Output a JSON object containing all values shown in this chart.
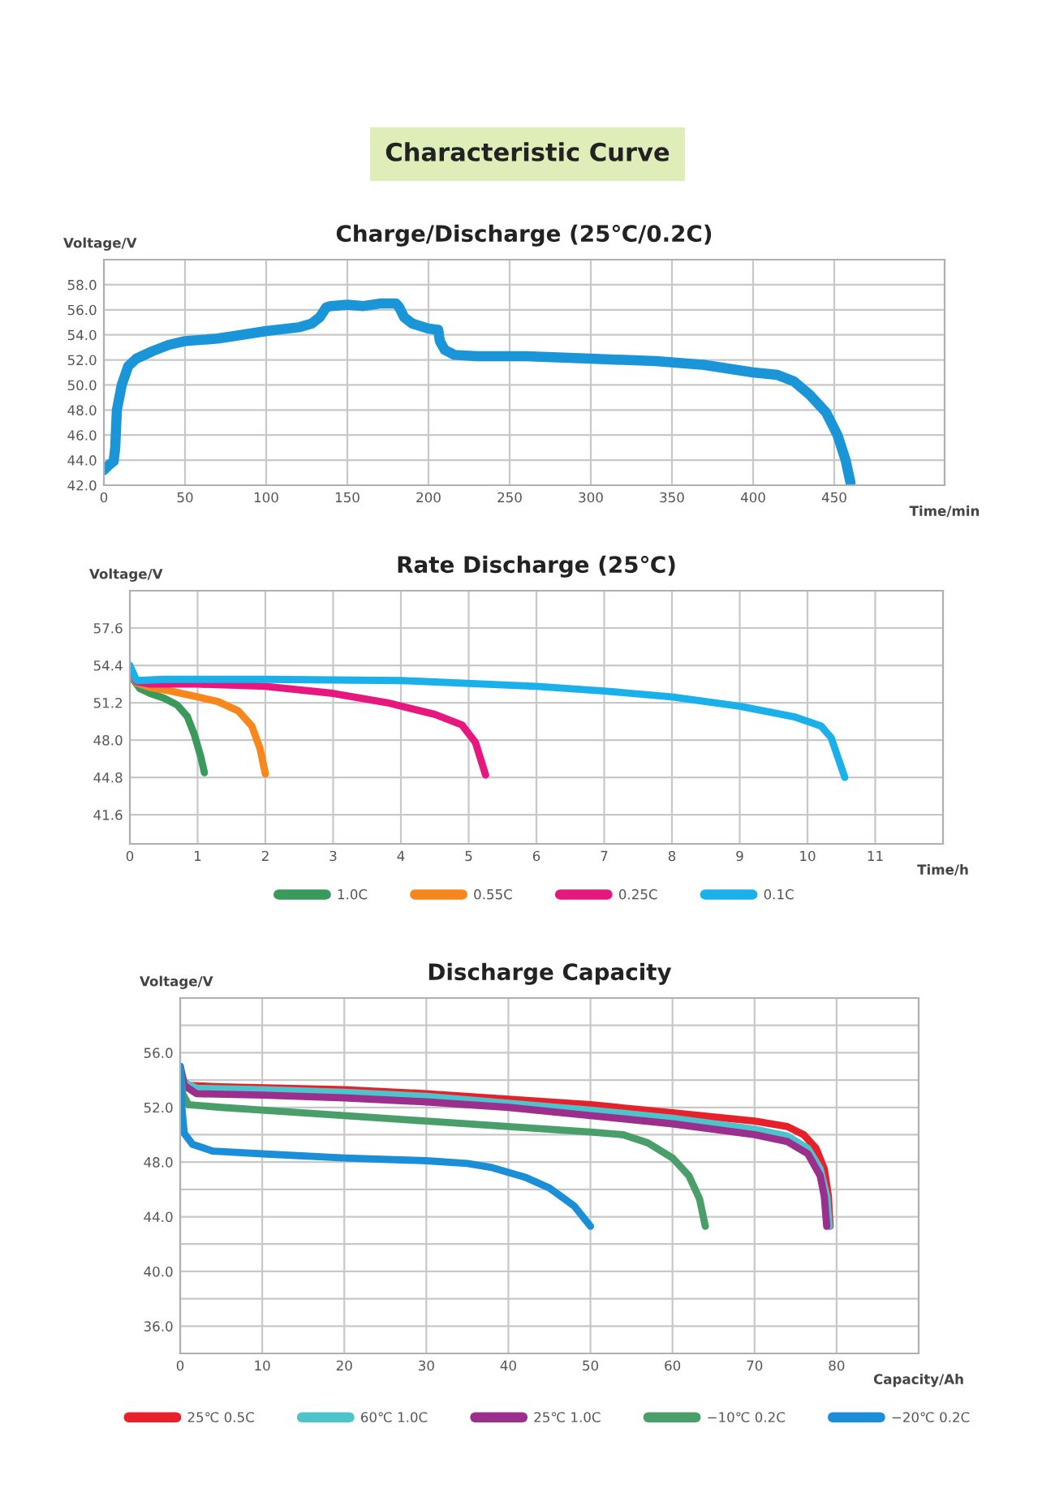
{
  "chart_data": [
    {
      "type": "line",
      "title": "Charge/Discharge (25℃/0.2C)",
      "annotations": [
        "Characteristic Curve"
      ],
      "xlabel": "Time/min",
      "ylabel": "Voltage/V",
      "xlim": [
        0,
        518
      ],
      "xticks": [
        0,
        50,
        100,
        150,
        200,
        250,
        300,
        350,
        400,
        450
      ],
      "ylim": [
        42,
        60
      ],
      "yticks": [
        {
          "value": 42,
          "label": "42.0"
        },
        {
          "value": 44,
          "label": "44.0"
        },
        {
          "value": 46,
          "label": "46.0"
        },
        {
          "value": 48,
          "label": "48.0"
        },
        {
          "value": 50,
          "label": "50.0"
        },
        {
          "value": 52,
          "label": "52.0"
        },
        {
          "value": 54,
          "label": "54.0"
        },
        {
          "value": 56,
          "label": "56.0"
        },
        {
          "value": 58,
          "label": "58.0"
        }
      ],
      "grid": true,
      "legend": false,
      "series": [
        {
          "color": "#1a96d8",
          "x": [
            0,
            3,
            6,
            7,
            8,
            11,
            15,
            20,
            30,
            40,
            50,
            70,
            80,
            100,
            120,
            128,
            133,
            137,
            140,
            150,
            160,
            170,
            180,
            182,
            185,
            190,
            200,
            206,
            207,
            210,
            216,
            230,
            260,
            280,
            300,
            340,
            370,
            400,
            415,
            425,
            435,
            445,
            452,
            457,
            460
          ],
          "values": [
            43.2,
            43.6,
            43.9,
            45,
            48,
            50,
            51.5,
            52.1,
            52.7,
            53.2,
            53.5,
            53.7,
            53.9,
            54.3,
            54.6,
            54.9,
            55.4,
            56.2,
            56.3,
            56.4,
            56.3,
            56.5,
            56.5,
            56.2,
            55.4,
            54.9,
            54.5,
            54.4,
            53.5,
            52.8,
            52.4,
            52.3,
            52.3,
            52.2,
            52.1,
            51.9,
            51.6,
            51.0,
            50.8,
            50.3,
            49.2,
            47.8,
            46,
            44,
            42.2
          ]
        }
      ]
    },
    {
      "type": "line",
      "title": "Rate Discharge (25℃)",
      "xlabel": "Time/h",
      "ylabel": "Voltage/V",
      "xlim": [
        0,
        12
      ],
      "xticks": [
        0,
        1,
        2,
        3,
        4,
        5,
        6,
        7,
        8,
        9,
        10,
        11
      ],
      "ylim": [
        39.1,
        60.8
      ],
      "yticks": [
        41.6,
        44.8,
        {
          "value": 48,
          "label": "48.0"
        },
        51.2,
        54.4,
        57.6
      ],
      "grid": true,
      "legend": "bottom",
      "series": [
        {
          "name": "1.0C",
          "color": "#3a9a5c",
          "x": [
            0,
            0.05,
            0.15,
            0.3,
            0.5,
            0.7,
            0.85,
            0.95,
            1.05,
            1.1
          ],
          "values": [
            54.2,
            53.2,
            52.4,
            52.0,
            51.6,
            51.0,
            50.0,
            48.5,
            46.5,
            45.2
          ]
        },
        {
          "name": "0.55C",
          "color": "#f7861c",
          "x": [
            0,
            0.1,
            0.3,
            0.6,
            1.0,
            1.3,
            1.6,
            1.8,
            1.92,
            2.0
          ],
          "values": [
            54.0,
            52.9,
            52.5,
            52.2,
            51.7,
            51.3,
            50.5,
            49.2,
            47.3,
            45.1
          ]
        },
        {
          "name": "0.25C",
          "color": "#e6177f",
          "x": [
            0,
            0.1,
            0.3,
            1,
            2,
            3,
            3.8,
            4.5,
            4.9,
            5.1,
            5.25
          ],
          "values": [
            54.3,
            53.0,
            52.8,
            52.8,
            52.6,
            52.0,
            51.2,
            50.2,
            49.3,
            47.8,
            45.0
          ]
        },
        {
          "name": "0.1C",
          "color": "#1ab0ea",
          "x": [
            0,
            0.1,
            0.5,
            2,
            4,
            6,
            7,
            8,
            9,
            9.8,
            10.2,
            10.35,
            10.45,
            10.55
          ],
          "values": [
            54.4,
            53.1,
            53.2,
            53.2,
            53.1,
            52.6,
            52.2,
            51.7,
            50.9,
            50.0,
            49.2,
            48.2,
            46.5,
            44.8
          ]
        }
      ]
    },
    {
      "type": "line",
      "title": "Discharge Capacity",
      "xlabel": "Capacity/Ah",
      "ylabel": "Voltage/V",
      "xlim": [
        0,
        90
      ],
      "xticks": [
        0,
        10,
        20,
        30,
        40,
        50,
        60,
        70,
        80
      ],
      "ylim": [
        34,
        60
      ],
      "yticks": [
        {
          "value": 36,
          "label": "36.0"
        },
        {
          "value": 38,
          "label": null
        },
        {
          "value": 40,
          "label": "40.0"
        },
        {
          "value": 42,
          "label": null
        },
        {
          "value": 44,
          "label": "44.0"
        },
        {
          "value": 46,
          "label": null
        },
        {
          "value": 48,
          "label": "48.0"
        },
        {
          "value": 50,
          "label": null
        },
        {
          "value": 52,
          "label": "52.0"
        },
        {
          "value": 54,
          "label": null
        },
        {
          "value": 56,
          "label": "56.0"
        },
        {
          "value": 58,
          "label": null
        }
      ],
      "grid": true,
      "legend": "bottom",
      "series": [
        {
          "name": "25℃ 0.5C",
          "color": "#e8202a",
          "x": [
            0,
            0.3,
            1,
            5,
            20,
            30,
            40,
            50,
            60,
            70,
            74,
            76,
            77.5,
            78.5,
            79,
            79.2
          ],
          "values": [
            55.0,
            54.0,
            53.6,
            53.5,
            53.3,
            53.0,
            52.6,
            52.2,
            51.6,
            51.0,
            50.6,
            50.0,
            49.0,
            47.5,
            45.5,
            43.3
          ]
        },
        {
          "name": "60℃ 1.0C",
          "color": "#4dc4cc",
          "x": [
            0,
            0.5,
            2,
            10,
            20,
            30,
            40,
            50,
            60,
            70,
            74,
            76.5,
            78,
            78.8,
            79.1
          ],
          "values": [
            55.0,
            53.8,
            53.4,
            53.3,
            53.1,
            52.8,
            52.3,
            51.8,
            51.2,
            50.4,
            49.9,
            49.0,
            47.5,
            45.5,
            43.3
          ]
        },
        {
          "name": "25℃ 1.0C",
          "color": "#9b2f8e",
          "x": [
            0,
            0.5,
            2,
            10,
            20,
            30,
            40,
            50,
            60,
            70,
            74,
            76.5,
            78,
            78.5,
            78.8
          ],
          "values": [
            55.0,
            53.6,
            53.0,
            52.9,
            52.7,
            52.4,
            52.0,
            51.4,
            50.8,
            50.0,
            49.5,
            48.6,
            47.0,
            45.5,
            43.3
          ]
        },
        {
          "name": "−10℃ 0.2C",
          "color": "#4a9e6a",
          "x": [
            0,
            0.3,
            1,
            5,
            10,
            20,
            30,
            40,
            50,
            54,
            57,
            60,
            62,
            63.3,
            64
          ],
          "values": [
            55.0,
            53.0,
            52.2,
            52.0,
            51.8,
            51.4,
            51.0,
            50.6,
            50.2,
            50.0,
            49.4,
            48.3,
            47.0,
            45.3,
            43.3
          ]
        },
        {
          "name": "−20℃ 0.2C",
          "color": "#1a8fd8",
          "x": [
            0,
            0.2,
            0.5,
            1.5,
            4,
            10,
            20,
            30,
            35,
            38,
            42,
            45,
            48,
            50
          ],
          "values": [
            55.0,
            52.0,
            50.1,
            49.3,
            48.8,
            48.6,
            48.3,
            48.1,
            47.9,
            47.6,
            46.9,
            46.1,
            44.8,
            43.3
          ]
        }
      ]
    }
  ]
}
